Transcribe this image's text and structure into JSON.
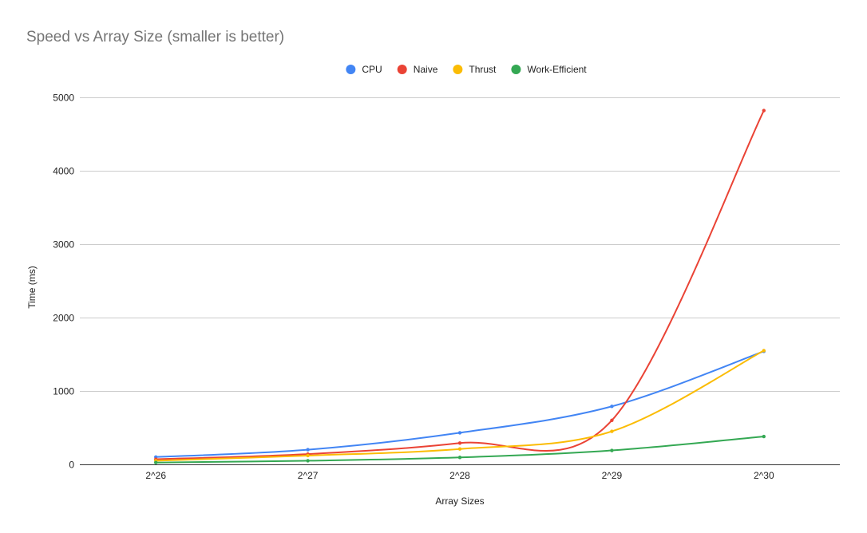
{
  "chart_data": {
    "type": "line",
    "title": "Speed vs Array Size (smaller is better)",
    "xlabel": "Array Sizes",
    "ylabel": "Time (ms)",
    "categories": [
      "2^26",
      "2^27",
      "2^28",
      "2^29",
      "2^30"
    ],
    "ylim": [
      0,
      5000
    ],
    "yticks": [
      "0",
      "1000",
      "2000",
      "3000",
      "4000",
      "5000"
    ],
    "grid": true,
    "smooth": true,
    "legend_position": "top",
    "series": [
      {
        "name": "CPU",
        "color": "#4285f4",
        "values": [
          100,
          200,
          430,
          790,
          1540
        ]
      },
      {
        "name": "Naive",
        "color": "#ea4335",
        "values": [
          70,
          140,
          290,
          600,
          4820
        ]
      },
      {
        "name": "Thrust",
        "color": "#fbbc04",
        "values": [
          50,
          120,
          210,
          450,
          1550
        ]
      },
      {
        "name": "Work-Efficient",
        "color": "#34a853",
        "values": [
          25,
          50,
          95,
          190,
          380
        ]
      }
    ]
  }
}
